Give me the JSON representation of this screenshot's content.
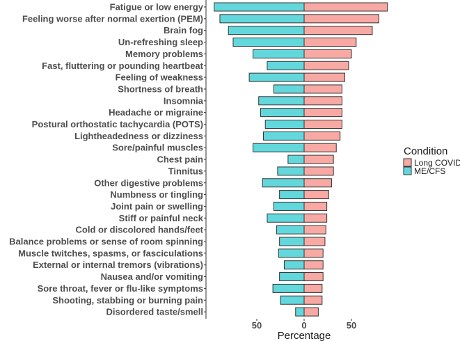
{
  "chart_data": {
    "type": "bar",
    "orientation": "horizontal-diverging",
    "xlabel": "Percentage",
    "ylabel": "",
    "x_ticks": [
      {
        "value": -50,
        "label": "50"
      },
      {
        "value": 0,
        "label": "0"
      },
      {
        "value": 50,
        "label": "50"
      }
    ],
    "xlim": [
      -100,
      100
    ],
    "grid": false,
    "legend": {
      "title": "Condition",
      "placement": "right"
    },
    "categories": [
      "Fatigue or low energy",
      "Feeling worse after normal exertion (PEM)",
      "Brain fog",
      "Un-refreshing sleep",
      "Memory problems",
      "Fast, fluttering or pounding heartbeat",
      "Feeling of weakness",
      "Shortness of breath",
      "Insomnia",
      "Headache or migraine",
      "Postural orthostatic tachycardia (POTS)",
      "Lightheadedness or dizziness",
      "Sore/painful muscles",
      "Chest pain",
      "Tinnitus",
      "Other digestive problems",
      "Numbness or tingling",
      "Joint pain or swelling",
      "Stiff or painful neck",
      "Cold or discolored hands/feet",
      "Balance problems or sense of room spinning",
      "Muscle twitches, spasms, or fasciculations",
      "External or internal tremors (vibrations)",
      "Nausea and/or vomiting",
      "Sore throat, fever or flu-like symptoms",
      "Shooting, stabbing or burning pain",
      "Disordered taste/smell"
    ],
    "series": [
      {
        "name": "Long COVID",
        "side": "right",
        "color": "#F8A9A3",
        "values": [
          88,
          79,
          72,
          55,
          50,
          47,
          43,
          40,
          40,
          40,
          40,
          38,
          34,
          31,
          31,
          29,
          26,
          24,
          24,
          23,
          22,
          20,
          20,
          20,
          19,
          19,
          15
        ]
      },
      {
        "name": "ME/CFS",
        "side": "left",
        "color": "#63D8DC",
        "values": [
          95,
          89,
          80,
          75,
          54,
          39,
          58,
          32,
          48,
          46,
          41,
          43,
          54,
          17,
          28,
          44,
          26,
          32,
          39,
          29,
          26,
          27,
          21,
          26,
          33,
          25,
          9
        ]
      }
    ],
    "border_color": "#333333"
  }
}
